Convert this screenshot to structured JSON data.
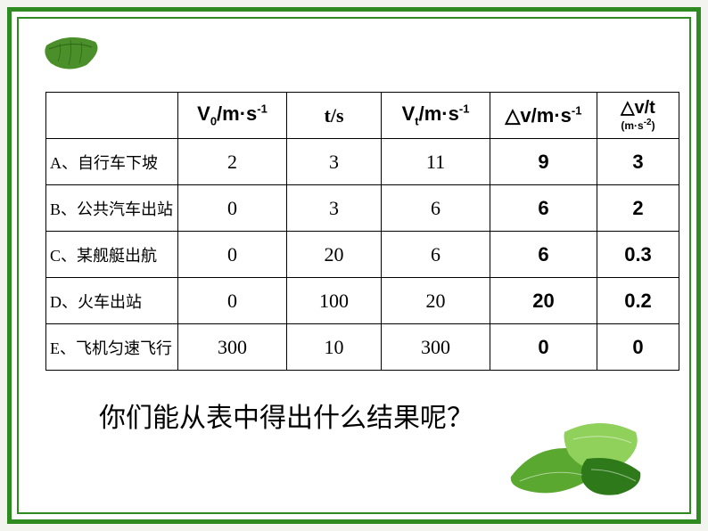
{
  "frame": {
    "border_color": "#2e8b1f",
    "background": "#ffffff"
  },
  "table": {
    "headers": {
      "col0": "",
      "v0_html": "V<sub>0</sub>/m·s<sup>-1</sup>",
      "ts_html": "t/s",
      "vt_html": "V<sub>t</sub>/m·s<sup>-1</sup>",
      "dv_html": "△v/m·s<sup>-1</sup>",
      "a_top_html": "△v/t",
      "a_unit_html": "(m·s<sup>-2</sup>)"
    },
    "rows": [
      {
        "label": "A、自行车下坡",
        "v0": "2",
        "t": "3",
        "vt": "11",
        "dv": "9",
        "a": "3"
      },
      {
        "label": "B、公共汽车出站",
        "v0": "0",
        "t": "3",
        "vt": "6",
        "dv": "6",
        "a": "2"
      },
      {
        "label": "C、某舰艇出航",
        "v0": "0",
        "t": "20",
        "vt": "6",
        "dv": "6",
        "a": "0.3"
      },
      {
        "label": "D、火车出站",
        "v0": "0",
        "t": "100",
        "vt": "20",
        "dv": "20",
        "a": "0.2"
      },
      {
        "label": "E、飞机匀速飞行",
        "v0": "300",
        "t": "10",
        "vt": "300",
        "dv": "0",
        "a": "0"
      }
    ],
    "bold_columns": [
      "dv",
      "a"
    ],
    "border_color": "#000000",
    "cell_fontsize": 22,
    "label_fontsize": 18
  },
  "question": "你们能从表中得出什么结果呢？",
  "leaves": {
    "top_fill": "#4a8f2a",
    "top_dark": "#2f6b18",
    "bottom_light": "#8fd15a",
    "bottom_mid": "#5aa82f",
    "bottom_dark": "#2e7a1a"
  }
}
